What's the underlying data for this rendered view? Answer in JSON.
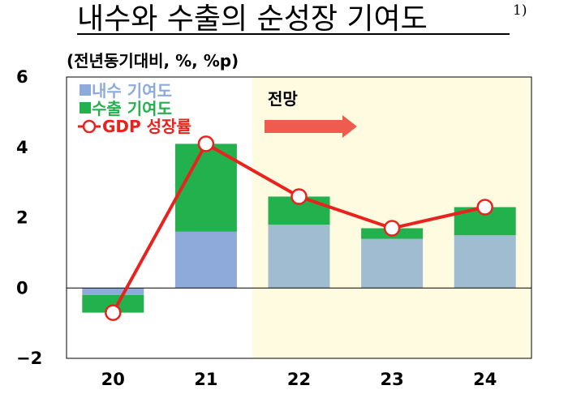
{
  "chart_data": {
    "type": "bar",
    "title": "내수와 수출의 순성장 기여도",
    "title_footnote": "1)",
    "unit_label": "(전년동기대비, %, %p)",
    "categories": [
      "20",
      "21",
      "22",
      "23",
      "24"
    ],
    "ylim": [
      -2,
      6
    ],
    "yticks": [
      "6",
      "4",
      "2",
      "0",
      "−2"
    ],
    "ytick_values": [
      6,
      4,
      2,
      0,
      -2
    ],
    "stacked": true,
    "series": [
      {
        "name": "내수 기여도",
        "kind": "bar",
        "color": "#8eaadb",
        "values": [
          -0.2,
          1.6,
          1.8,
          1.4,
          1.5
        ]
      },
      {
        "name": "수출 기여도",
        "kind": "bar",
        "color": "#22b14c",
        "values": [
          -0.5,
          2.5,
          0.8,
          0.3,
          0.8
        ]
      },
      {
        "name": "GDP 성장률",
        "kind": "line",
        "color": "#e8231e",
        "values": [
          -0.7,
          4.1,
          2.6,
          1.7,
          2.3
        ]
      }
    ],
    "forecast": {
      "label": "전망",
      "start_category": "22",
      "shade_color": "#fffbe0",
      "arrow_color": "#ef5b4f"
    },
    "forecast_bar_color": "#9fbcd0",
    "grid": false
  }
}
